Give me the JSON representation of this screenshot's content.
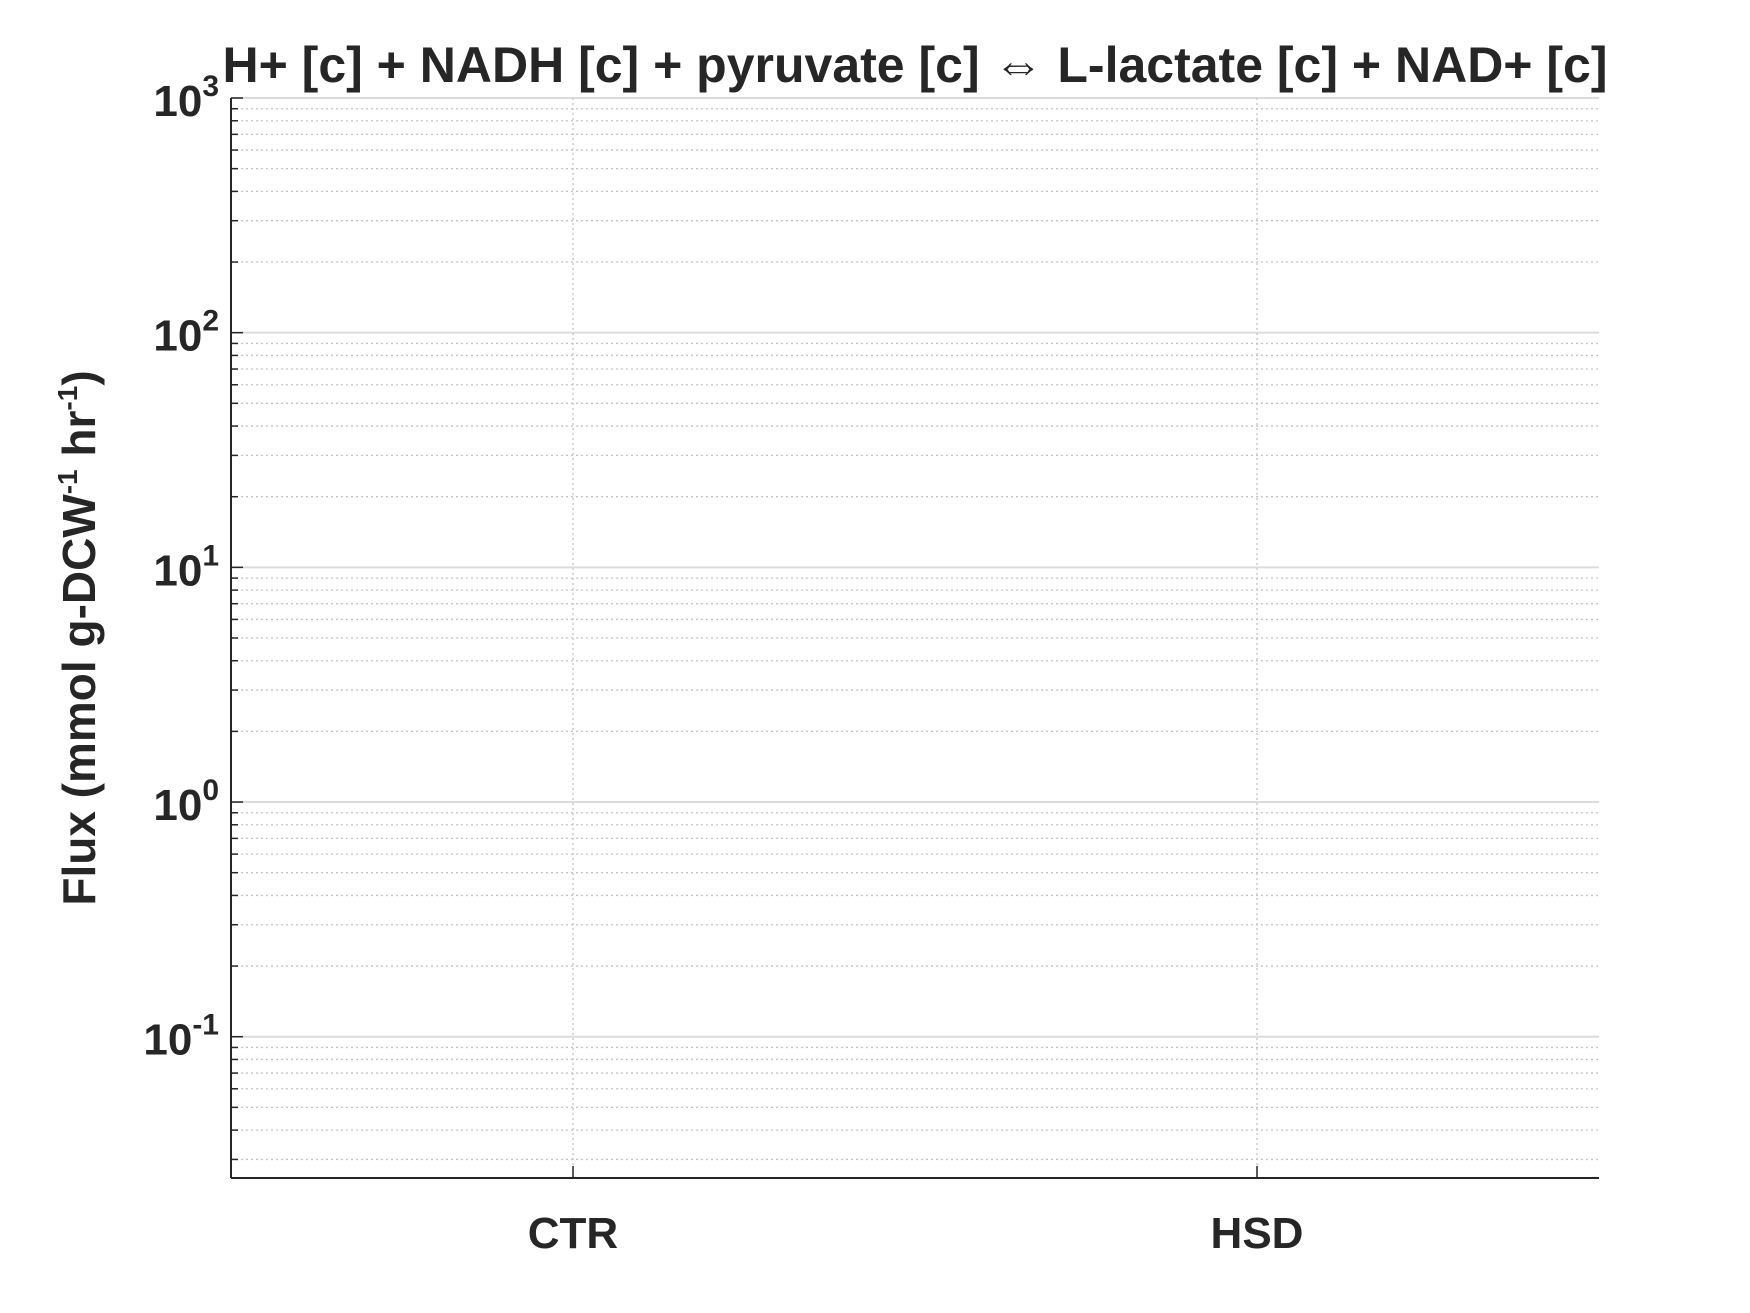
{
  "chart_data": {
    "type": "bar",
    "title": "H+ [c] + NADH [c] + pyruvate [c] ⇔ L-lactate [c] + NAD+ [c]",
    "categories": [
      "CTR",
      "HSD"
    ],
    "series": [],
    "ylabel": {
      "prefix": "Flux (mmol g-DCW",
      "sup1": "-1",
      "middle": " hr",
      "sup2": "-1",
      "suffix": ")"
    },
    "yscale": "log",
    "ylim": [
      0.025,
      1000
    ],
    "yticks": [
      {
        "value": 0.1,
        "base": "10",
        "exp": "-1"
      },
      {
        "value": 1,
        "base": "10",
        "exp": "0"
      },
      {
        "value": 10,
        "base": "10",
        "exp": "1"
      },
      {
        "value": 100,
        "base": "10",
        "exp": "2"
      },
      {
        "value": 1000,
        "base": "10",
        "exp": "3"
      }
    ],
    "grid": true,
    "minor_grid": true
  }
}
